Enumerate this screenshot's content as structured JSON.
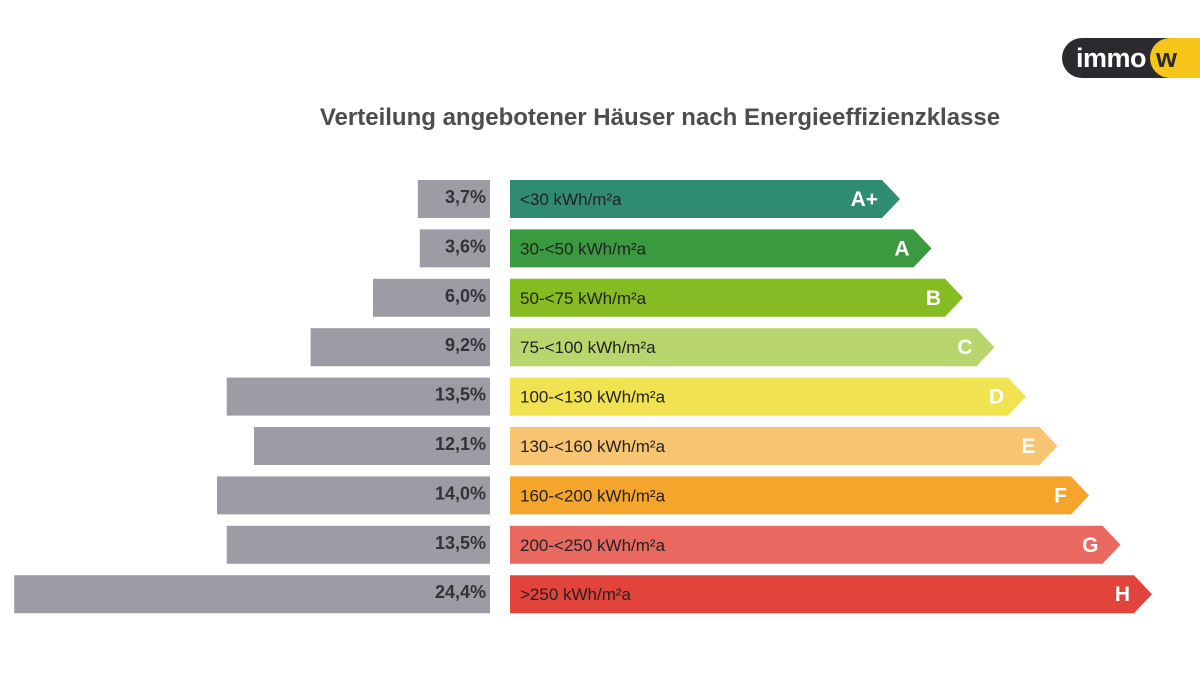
{
  "logo": {
    "part1": "immo",
    "part2": "w"
  },
  "chart_data": {
    "type": "bar",
    "title": "Verteilung angebotener Häuser nach Energieeffizienzklasse",
    "categories": [
      "A+",
      "A",
      "B",
      "C",
      "D",
      "E",
      "F",
      "G",
      "H"
    ],
    "ranges": [
      "<30 kWh/m²a",
      "30-<50 kWh/m²a",
      "50-<75 kWh/m²a",
      "75-<100 kWh/m²a",
      "100-<130 kWh/m²a",
      "130-<160 kWh/m²a",
      "160-<200 kWh/m²a",
      "200-<250 kWh/m²a",
      ">250 kWh/m²a"
    ],
    "values": [
      3.7,
      3.6,
      6.0,
      9.2,
      13.5,
      12.1,
      14.0,
      13.5,
      24.4
    ],
    "value_labels": [
      "3,7%",
      "3,6%",
      "6,0%",
      "9,2%",
      "13,5%",
      "12,1%",
      "14,0%",
      "13,5%",
      "24,4%"
    ],
    "class_colors": [
      "#2f8b72",
      "#3b9a3f",
      "#85bb23",
      "#b8d66d",
      "#f0e251",
      "#f7c572",
      "#f5a52c",
      "#e9685f",
      "#e2433a"
    ],
    "value_bar_color": "#9d9ca4"
  }
}
